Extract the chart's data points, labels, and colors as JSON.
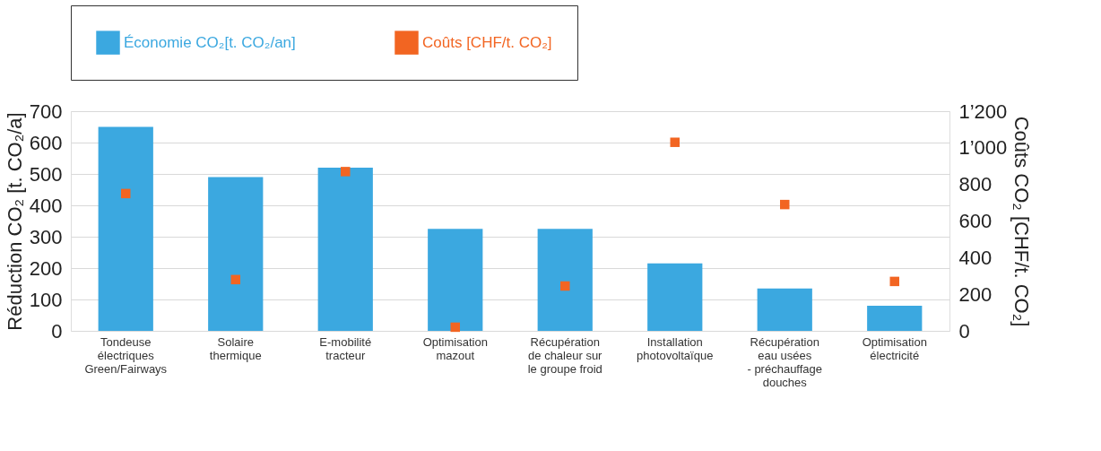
{
  "chart_data": {
    "type": "bar",
    "categories": [
      "Tondeuse\nélectriques\nGreen/Fairways",
      "Solaire\nthermique",
      "E-mobilité\ntracteur",
      "Optimisation\nmazout",
      "Récupération\nde chaleur sur\nle groupe froid",
      "Installation\nphotovoltaïque",
      "Récupération\neau usées\n- préchauffage\ndouches",
      "Optimisation\nélectricité"
    ],
    "series": [
      {
        "name": "Économie CO₂[t. CO₂/an]",
        "color": "#3ba8e0",
        "values": [
          650,
          490,
          520,
          325,
          325,
          215,
          135,
          80
        ]
      },
      {
        "name": "Coûts [CHF/t. CO₂]",
        "type": "scatter",
        "axis": "y2",
        "marker": "square",
        "color": "#f26522",
        "values": [
          750,
          280,
          870,
          20,
          245,
          1030,
          690,
          270
        ]
      }
    ],
    "ylabel": "Réduction CO₂ [t. CO₂/a]",
    "y2label": "Coûts CO₂ [CHF/t. CO₂]",
    "ylim": [
      0,
      700
    ],
    "yticks": [
      0,
      100,
      200,
      300,
      400,
      500,
      600,
      700
    ],
    "y2lim": [
      0,
      1200
    ],
    "y2ticks": [
      0,
      200,
      400,
      600,
      800,
      {
        "value": 1000,
        "label": "1’000"
      },
      {
        "value": 1200,
        "label": "1’200"
      }
    ],
    "grid": "y",
    "legend": "top"
  }
}
